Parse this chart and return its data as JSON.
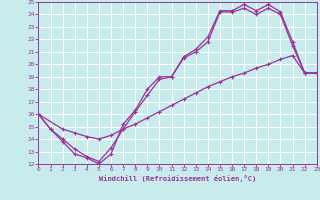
{
  "xlabel": "Windchill (Refroidissement éolien,°C)",
  "bg_color": "#c8ecec",
  "line_color": "#993399",
  "grid_color": "#ffffff",
  "xmin": 0,
  "xmax": 23,
  "ymin": 12,
  "ymax": 25,
  "line1_x": [
    0,
    1,
    2,
    3,
    4,
    5,
    6,
    7,
    8,
    9,
    10,
    11,
    12,
    13,
    14,
    15,
    16,
    17,
    18,
    19,
    20,
    21,
    22,
    23
  ],
  "line1_y": [
    16,
    14.8,
    13.8,
    12.8,
    12.5,
    12.0,
    12.8,
    15.2,
    16.3,
    18.0,
    19.0,
    19.0,
    20.6,
    21.2,
    22.2,
    24.3,
    24.3,
    24.8,
    24.3,
    24.8,
    24.2,
    21.8,
    19.3,
    19.3
  ],
  "line2_x": [
    0,
    1,
    2,
    3,
    4,
    5,
    6,
    7,
    8,
    9,
    10,
    11,
    12,
    13,
    14,
    15,
    16,
    17,
    18,
    19,
    20,
    21,
    22,
    23
  ],
  "line2_y": [
    16,
    14.8,
    14.0,
    13.2,
    12.6,
    12.2,
    13.3,
    14.8,
    16.2,
    17.5,
    18.8,
    19.0,
    20.5,
    21.0,
    21.8,
    24.2,
    24.2,
    24.5,
    24.0,
    24.5,
    24.0,
    21.5,
    19.3,
    19.3
  ],
  "line3_x": [
    0,
    2,
    3,
    4,
    5,
    6,
    7,
    8,
    9,
    10,
    11,
    12,
    13,
    14,
    15,
    16,
    17,
    18,
    19,
    20,
    21,
    22,
    23
  ],
  "line3_y": [
    16,
    14.8,
    14.5,
    14.2,
    14.0,
    14.3,
    14.8,
    15.2,
    15.7,
    16.2,
    16.7,
    17.2,
    17.7,
    18.2,
    18.6,
    19.0,
    19.3,
    19.7,
    20.0,
    20.4,
    20.7,
    19.3,
    19.3
  ],
  "yticks": [
    12,
    13,
    14,
    15,
    16,
    17,
    18,
    19,
    20,
    21,
    22,
    23,
    24,
    25
  ],
  "xticks": [
    0,
    1,
    2,
    3,
    4,
    5,
    6,
    7,
    8,
    9,
    10,
    11,
    12,
    13,
    14,
    15,
    16,
    17,
    18,
    19,
    20,
    21,
    22,
    23
  ]
}
